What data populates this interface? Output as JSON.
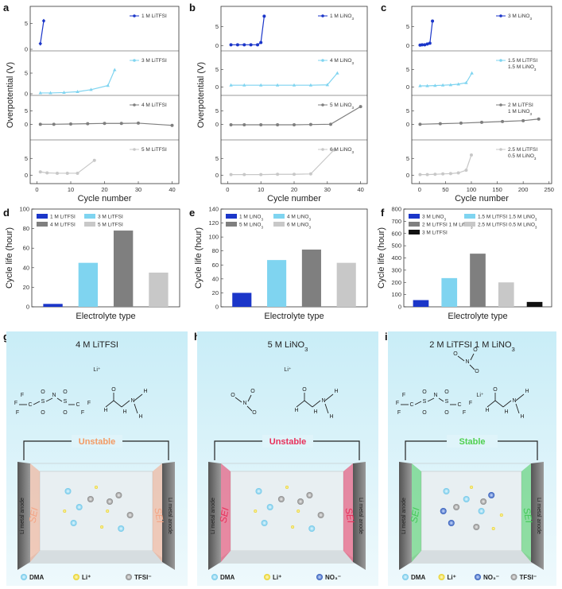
{
  "colors": {
    "c1": "#1b36c9",
    "c2": "#7fd4f0",
    "c3": "#7f7f7f",
    "c4": "#c8c8c8",
    "c5": "#111111",
    "unstable_a": "#f39a63",
    "unstable_b": "#e8305a",
    "stable": "#4fd04f",
    "sei_a": "#f4a484",
    "sei_b": "#e8305a",
    "sei_c": "#46c85a",
    "bg_top": "#c9edf7",
    "bg_bottom": "#eef9fc"
  },
  "panels": {
    "a": "a",
    "b": "b",
    "c": "c",
    "d": "d",
    "e": "e",
    "f": "f",
    "g": "g",
    "h": "h",
    "i": "i"
  },
  "chart_data": [
    {
      "panel": "a",
      "type": "line",
      "ylabel": "Overpotential (V)",
      "xlabel": "Cycle number",
      "xlim": [
        -2,
        42
      ],
      "xticks": [
        "0",
        "10",
        "20",
        "30",
        "40"
      ],
      "subplots": [
        {
          "legend": "1 M LiTFSI",
          "ylim": [
            0,
            8
          ],
          "yticks": [
            "0",
            "5"
          ],
          "color_key": "c1",
          "marker": "diamond",
          "x": [
            1,
            2
          ],
          "y": [
            1.1,
            5.5
          ]
        },
        {
          "legend": "3 M LiTFSI",
          "ylim": [
            0,
            10
          ],
          "yticks": [
            "0",
            "5"
          ],
          "color_key": "c2",
          "marker": "triangle",
          "x": [
            1,
            4,
            8,
            12,
            16,
            21,
            23
          ],
          "y": [
            0.2,
            0.2,
            0.3,
            0.5,
            1.0,
            2.0,
            5.8
          ]
        },
        {
          "legend": "4 M LiTFSI",
          "ylim": [
            -5,
            10
          ],
          "yticks": [
            "0",
            "5"
          ],
          "color_key": "c3",
          "marker": "circle",
          "x": [
            1,
            5,
            10,
            15,
            20,
            25,
            30,
            40
          ],
          "y": [
            0.1,
            0.1,
            0.2,
            0.3,
            0.4,
            0.4,
            0.5,
            -0.3
          ]
        },
        {
          "legend": "5 M LiTFSI",
          "ylim": [
            -2,
            10
          ],
          "yticks": [
            "0",
            "5"
          ],
          "color_key": "c4",
          "marker": "circle",
          "x": [
            1,
            3,
            6,
            9,
            12,
            17
          ],
          "y": [
            1.0,
            0.7,
            0.6,
            0.6,
            0.6,
            4.4
          ]
        }
      ]
    },
    {
      "panel": "b",
      "type": "line",
      "ylabel": "Overpotential (V)",
      "xlabel": "Cycle number",
      "xlim": [
        -2,
        42
      ],
      "xticks": [
        "0",
        "10",
        "20",
        "30",
        "40"
      ],
      "subplots": [
        {
          "legend": "1 M LiNO3",
          "ylim": [
            -1,
            10
          ],
          "yticks": [
            "0",
            "5"
          ],
          "color_key": "c1",
          "marker": "circle",
          "x": [
            1,
            3,
            5,
            7,
            9,
            10,
            11
          ],
          "y": [
            0.2,
            0.2,
            0.2,
            0.2,
            0.2,
            0.8,
            7.8
          ]
        },
        {
          "legend": "4 M LiNO3",
          "ylim": [
            -2,
            10
          ],
          "yticks": [
            "0",
            "5"
          ],
          "color_key": "c2",
          "marker": "triangle",
          "x": [
            1,
            5,
            10,
            15,
            20,
            25,
            30,
            33
          ],
          "y": [
            0.5,
            0.5,
            0.5,
            0.5,
            0.5,
            0.5,
            0.6,
            4.0
          ]
        },
        {
          "legend": "5 M LiNO3",
          "ylim": [
            -5,
            10
          ],
          "yticks": [
            "0",
            "5"
          ],
          "color_key": "c3",
          "marker": "circle",
          "x": [
            1,
            5,
            10,
            15,
            20,
            25,
            31,
            40
          ],
          "y": [
            -0.1,
            -0.1,
            -0.1,
            -0.1,
            -0.1,
            0,
            0.1,
            6.5
          ]
        },
        {
          "legend": "6 M LiNO3",
          "ylim": [
            -2,
            10
          ],
          "yticks": [
            "0",
            "5"
          ],
          "color_key": "c4",
          "marker": "circle",
          "x": [
            1,
            5,
            10,
            15,
            20,
            25,
            32
          ],
          "y": [
            0.2,
            0.2,
            0.2,
            0.3,
            0.3,
            0.4,
            7.5
          ]
        }
      ]
    },
    {
      "panel": "c",
      "type": "line",
      "ylabel": "",
      "xlabel": "Cycle number",
      "xlim": [
        -15,
        255
      ],
      "xticks": [
        "0",
        "50",
        "100",
        "150",
        "200",
        "250"
      ],
      "subplots": [
        {
          "legend": "3 M LiNO3",
          "ylim": [
            -1,
            10
          ],
          "yticks": [
            "0",
            "5"
          ],
          "color_key": "c1",
          "marker": "circle",
          "x": [
            1,
            5,
            10,
            15,
            20,
            25
          ],
          "y": [
            0.1,
            0.2,
            0.2,
            0.4,
            0.6,
            6.5
          ]
        },
        {
          "legend": "1.5 M LiTFSI 1.5 M LiNO3",
          "ylim": [
            -2,
            10
          ],
          "yticks": [
            "0",
            "5"
          ],
          "color_key": "c2",
          "marker": "triangle",
          "x": [
            1,
            15,
            30,
            45,
            60,
            75,
            90,
            101
          ],
          "y": [
            0.3,
            0.3,
            0.4,
            0.5,
            0.6,
            0.8,
            1.2,
            4.0
          ]
        },
        {
          "legend": "2 M LiTFSI 1 M LiNO3",
          "ylim": [
            -5,
            10
          ],
          "yticks": [
            "0",
            "5"
          ],
          "color_key": "c3",
          "marker": "circle",
          "x": [
            1,
            40,
            80,
            120,
            160,
            200,
            230
          ],
          "y": [
            0.1,
            0.3,
            0.5,
            0.8,
            1.1,
            1.4,
            2.0
          ]
        },
        {
          "legend": "2.5 M LiTFSI 0.5 M LiNO3",
          "ylim": [
            -2,
            10
          ],
          "yticks": [
            "0",
            "5"
          ],
          "color_key": "c4",
          "marker": "circle",
          "x": [
            1,
            15,
            30,
            45,
            60,
            75,
            90,
            100
          ],
          "y": [
            0.2,
            0.2,
            0.3,
            0.4,
            0.5,
            0.7,
            1.5,
            6.0
          ]
        }
      ]
    },
    {
      "panel": "d",
      "type": "bar",
      "ylabel": "Cycle life (hour)",
      "xlabel": "Electrolyte type",
      "ylim": [
        0,
        100
      ],
      "yticks": [
        "0",
        "20",
        "40",
        "60",
        "80",
        "100"
      ],
      "categories": [
        "1 M LiTFSI",
        "3 M LiTFSI",
        "4 M LiTFSI",
        "5 M LiTFSI"
      ],
      "values": [
        3,
        45,
        78,
        35
      ],
      "color_keys": [
        "c1",
        "c2",
        "c3",
        "c4"
      ]
    },
    {
      "panel": "e",
      "type": "bar",
      "ylabel": "Cycle life (hour)",
      "xlabel": "Electrolyte type",
      "ylim": [
        0,
        140
      ],
      "yticks": [
        "0",
        "20",
        "40",
        "60",
        "80",
        "100",
        "120",
        "140"
      ],
      "categories": [
        "1 M LiNO3",
        "4 M LiNO3",
        "5 M LiNO3",
        "6 M LiNO3"
      ],
      "values": [
        20,
        67,
        82,
        63
      ],
      "color_keys": [
        "c1",
        "c2",
        "c3",
        "c4"
      ]
    },
    {
      "panel": "f",
      "type": "bar",
      "ylabel": "Cycle life (hour)",
      "xlabel": "Electrolyte type",
      "ylim": [
        0,
        800
      ],
      "yticks": [
        "0",
        "100",
        "200",
        "300",
        "400",
        "500",
        "600",
        "700",
        "800"
      ],
      "categories": [
        "3 M LiNO3",
        "1.5 M LiTFSI 1.5 M LiNO3",
        "2 M LiTFSI 1 M LiNO3",
        "2.5 M LiTFSI 0.5 M LiNO3",
        "3 M LiTFSI"
      ],
      "values": [
        55,
        235,
        435,
        200,
        40
      ],
      "bar_order": [
        "3 M LiNO3",
        "1.5 M LiTFSI 1.5 M LiNO3",
        "2 M LiTFSI 1 M LiNO3",
        "2.5 M LiTFSI 0.5 M LiNO3",
        "3 M LiTFSI"
      ],
      "color_keys": [
        "c1",
        "c2",
        "c3",
        "c4",
        "c5"
      ]
    }
  ],
  "schematics": [
    {
      "panel": "g",
      "title": "4 M LiTFSI",
      "cation": "Li⁺",
      "status": "Unstable",
      "status_color_key": "unstable_a",
      "sei_color_key": "sei_a",
      "left_label": "Li metal anode",
      "right_label": "Li metal anode",
      "sei": "SEI",
      "legend": [
        "DMA",
        "Li⁺",
        "TFSI⁻"
      ],
      "molecules": [
        "TFSI⁻",
        "DMA"
      ]
    },
    {
      "panel": "h",
      "title": "5 M LiNO3",
      "cation": "Li⁺",
      "status": "Unstable",
      "status_color_key": "unstable_b",
      "sei_color_key": "sei_b",
      "left_label": "Li metal anode",
      "right_label": "Li metal anode",
      "sei": "SEI",
      "legend": [
        "DMA",
        "Li⁺",
        "NO₃⁻"
      ],
      "molecules": [
        "NO₃⁻",
        "DMA"
      ]
    },
    {
      "panel": "i",
      "title": "2 M LiTFSI 1 M LiNO3",
      "cation": "Li⁺",
      "status": "Stable",
      "status_color_key": "stable",
      "sei_color_key": "sei_c",
      "left_label": "Li metal anode",
      "right_label": "Li metal anode",
      "sei": "SEI",
      "legend": [
        "DMA",
        "Li⁺",
        "NO₃⁻",
        "TFSI⁻"
      ],
      "molecules": [
        "NO₃⁻",
        "TFSI⁻",
        "DMA"
      ]
    }
  ]
}
